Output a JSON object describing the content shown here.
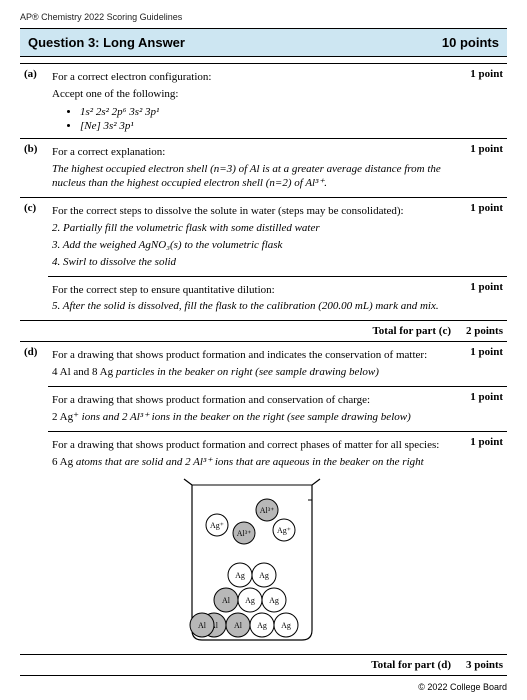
{
  "header": "AP® Chemistry 2022 Scoring Guidelines",
  "question": {
    "title": "Question 3: Long Answer",
    "points": "10 points"
  },
  "a": {
    "label": "(a)",
    "lead": "For a correct electron configuration:",
    "accept": "Accept one of the following:",
    "opt1": "1s² 2s² 2p⁶ 3s² 3p¹",
    "opt2": "[Ne] 3s² 3p¹",
    "pts": "1 point"
  },
  "b": {
    "label": "(b)",
    "lead": "For a correct explanation:",
    "exp": "The highest occupied electron shell (n=3) of Al is at a greater average distance from the nucleus than the highest occupied electron shell (n=2) of Al³⁺.",
    "pts": "1 point"
  },
  "c1": {
    "label": "(c)",
    "lead": "For the correct steps to dissolve the solute in water (steps may be consolidated):",
    "s2": "2. Partially fill the volumetric flask with some distilled water",
    "s3": "3. Add the weighed AgNO₃(s) to the volumetric flask",
    "s4": "4. Swirl to dissolve the solid",
    "pts": "1 point"
  },
  "c2": {
    "lead": "For the correct step to ensure quantitative dilution:",
    "s5": "5. After the solid is dissolved, fill the flask to the calibration (200.00 mL) mark and mix.",
    "pts": "1 point"
  },
  "ctotal": {
    "label": "Total for part (c)",
    "pts": "2 points"
  },
  "d1": {
    "label": "(d)",
    "lead": "For a drawing that shows product formation and indicates the conservation of matter:",
    "detail": "4 Al and 8 Ag particles in the beaker on right (see sample drawing below)",
    "pts": "1 point"
  },
  "d2": {
    "lead": "For a drawing that shows product formation and conservation of charge:",
    "detail": "2 Ag⁺ ions and 2 Al³⁺ ions in the beaker on the right (see sample drawing below)",
    "pts": "1 point"
  },
  "d3": {
    "lead": "For a drawing that shows product formation and correct phases of matter for all species:",
    "detail": "6 Ag atoms that are solid and 2 Al³⁺ ions that are aqueous in the beaker on the right",
    "pts": "1 point"
  },
  "dtotal": {
    "label": "Total for part (d)",
    "pts": "3 points"
  },
  "footer": "© 2022 College Board",
  "beaker": {
    "stroke": "#000000",
    "fill_unshaded": "#ffffff",
    "fill_shaded": "#b8b8b8",
    "label_fontsize": 8
  }
}
